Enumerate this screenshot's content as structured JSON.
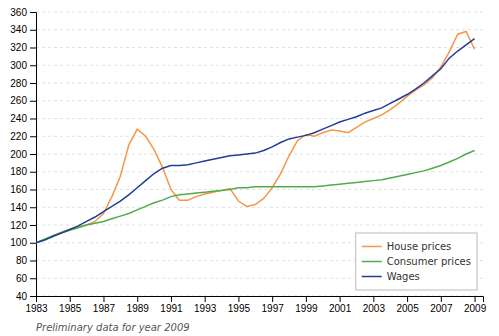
{
  "chart_data": {
    "type": "line",
    "footnote": "Preliminary data for year 2009",
    "x": [
      1983,
      1983.5,
      1984,
      1984.5,
      1985,
      1985.5,
      1986,
      1986.5,
      1987,
      1987.5,
      1988,
      1988.5,
      1989,
      1989.5,
      1990,
      1990.5,
      1991,
      1991.5,
      1992,
      1992.5,
      1993,
      1993.5,
      1994,
      1994.5,
      1995,
      1995.5,
      1996,
      1996.5,
      1997,
      1997.5,
      1998,
      1998.5,
      1999,
      1999.5,
      2000,
      2000.5,
      2001,
      2001.5,
      2002,
      2002.5,
      2003,
      2003.5,
      2004,
      2004.5,
      2005,
      2005.5,
      2006,
      2006.5,
      2007,
      2007.5,
      2008,
      2008.5,
      2009
    ],
    "series": [
      {
        "name": "House prices",
        "color": "#f79646",
        "values": [
          100,
          103,
          108,
          112,
          115,
          118,
          120,
          124,
          133,
          152,
          175,
          210,
          228,
          220,
          205,
          185,
          160,
          148,
          148,
          152,
          155,
          157,
          159,
          161,
          147,
          141,
          143,
          150,
          162,
          178,
          198,
          215,
          222,
          220,
          224,
          227,
          226,
          224,
          230,
          236,
          240,
          244,
          250,
          257,
          265,
          272,
          278,
          286,
          298,
          315,
          335,
          338,
          318
        ]
      },
      {
        "name": "Consumer prices",
        "color": "#4eac4e",
        "values": [
          100,
          104,
          108,
          111,
          114,
          117,
          120,
          122,
          124,
          127,
          130,
          133,
          137,
          141,
          145,
          148,
          152,
          154,
          155,
          156,
          157,
          158,
          159,
          160,
          162,
          162,
          163,
          163,
          163,
          163,
          163,
          163,
          163,
          163,
          164,
          165,
          166,
          167,
          168,
          169,
          170,
          171,
          173,
          175,
          177,
          179,
          181,
          184,
          187,
          191,
          195,
          200,
          204
        ]
      },
      {
        "name": "Wages",
        "color": "#1f3d99",
        "values": [
          100,
          103,
          107,
          111,
          115,
          119,
          124,
          129,
          135,
          141,
          147,
          154,
          162,
          170,
          178,
          184,
          187,
          187,
          188,
          190,
          192,
          194,
          196,
          198,
          199,
          200,
          201,
          204,
          208,
          213,
          217,
          219,
          221,
          224,
          228,
          232,
          236,
          239,
          242,
          246,
          249,
          252,
          257,
          262,
          267,
          273,
          280,
          288,
          296,
          308,
          316,
          323,
          330
        ]
      }
    ],
    "xlim": [
      1983,
      2009.5
    ],
    "xticks": [
      1983,
      1985,
      1987,
      1989,
      1991,
      1993,
      1995,
      1997,
      1999,
      2001,
      2003,
      2005,
      2007,
      2009
    ],
    "ylim": [
      40,
      360
    ],
    "yticks": [
      40,
      60,
      80,
      100,
      120,
      140,
      160,
      180,
      200,
      220,
      240,
      260,
      280,
      300,
      320,
      340,
      360
    ],
    "grid": true,
    "legend": "lower right"
  }
}
